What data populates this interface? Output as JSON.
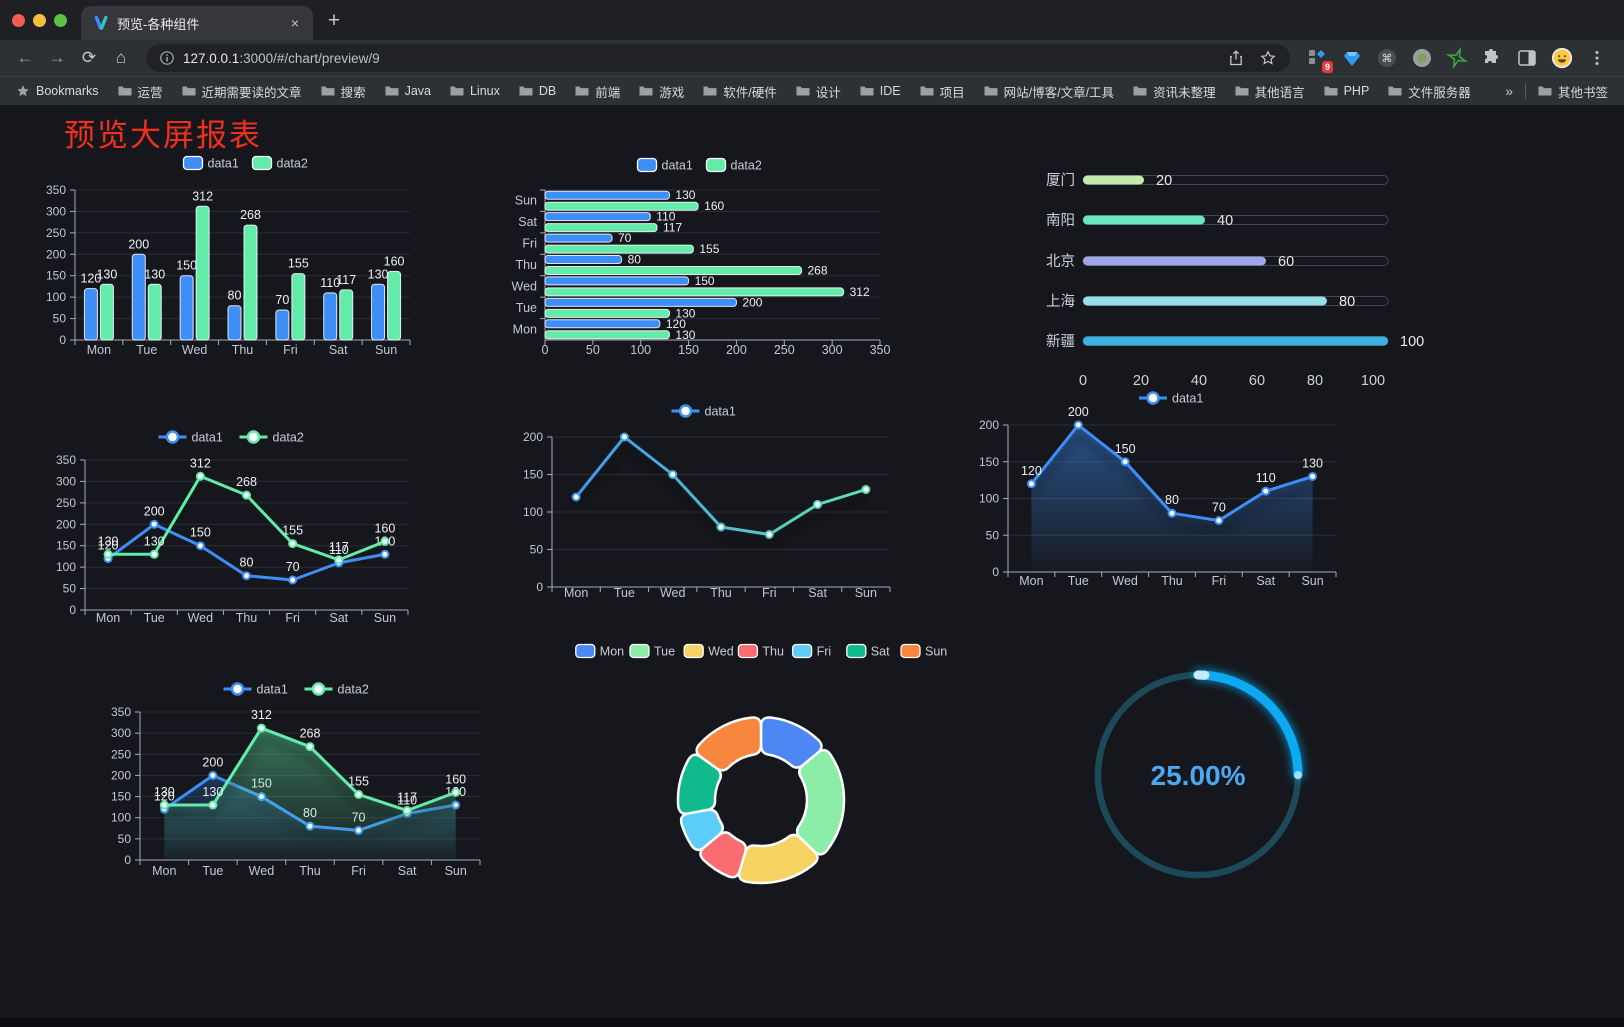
{
  "browser": {
    "tab": {
      "title": "预览-各种组件",
      "close_glyph": "×",
      "new_tab_glyph": "+"
    },
    "url": {
      "host": "127.0.0.1",
      "rest": ":3000/#/chart/preview/9"
    },
    "extension_badge": "9",
    "bookmarks_label": "Bookmarks",
    "bookmarks": [
      "运营",
      "近期需要读的文章",
      "搜索",
      "Java",
      "Linux",
      "DB",
      "前端",
      "游戏",
      "软件/硬件",
      "设计",
      "IDE",
      "项目",
      "网站/博客/文章/工具",
      "资讯未整理",
      "其他语言",
      "PHP",
      "文件服务器"
    ],
    "bookmarks_overflow": "»",
    "other_bookmarks": "其他书签"
  },
  "page": {
    "title": "预览大屏报表",
    "title_color": "#F0301C"
  },
  "chart_data": [
    {
      "id": "grouped-bar-vertical",
      "type": "bar",
      "categories": [
        "Mon",
        "Tue",
        "Wed",
        "Thu",
        "Fri",
        "Sat",
        "Sun"
      ],
      "series": [
        {
          "name": "data1",
          "color": "#3E8EF7",
          "values": [
            120,
            200,
            150,
            80,
            70,
            110,
            130
          ]
        },
        {
          "name": "data2",
          "color": "#63EBA9",
          "values": [
            130,
            130,
            312,
            268,
            155,
            117,
            160
          ]
        }
      ],
      "ylim": [
        0,
        350
      ],
      "ytick_step": 50,
      "legend_position": "top",
      "grid": true,
      "value_labels": true
    },
    {
      "id": "grouped-bar-horizontal",
      "type": "bar",
      "orientation": "horizontal",
      "categories": [
        "Mon",
        "Tue",
        "Wed",
        "Thu",
        "Fri",
        "Sat",
        "Sun"
      ],
      "categories_display_top_to_bottom": [
        "Sun",
        "Sat",
        "Fri",
        "Thu",
        "Wed",
        "Tue",
        "Mon"
      ],
      "series": [
        {
          "name": "data1",
          "color": "#3E8EF7",
          "values": [
            120,
            200,
            150,
            80,
            70,
            110,
            130
          ]
        },
        {
          "name": "data2",
          "color": "#63EBA9",
          "values": [
            130,
            130,
            312,
            268,
            155,
            117,
            160
          ]
        }
      ],
      "xlim": [
        0,
        350
      ],
      "xtick_step": 50,
      "legend_position": "top",
      "value_labels": true
    },
    {
      "id": "city-progress",
      "type": "bar",
      "variant": "progress",
      "categories": [
        "厦门",
        "南阳",
        "北京",
        "上海",
        "新疆"
      ],
      "values": [
        20,
        40,
        60,
        80,
        100
      ],
      "colors": [
        "#C4EBAD",
        "#6BE6C1",
        "#A0A7E6",
        "#96DEE8",
        "#3FB1E3"
      ],
      "xticks": [
        0,
        20,
        40,
        60,
        80,
        100
      ],
      "xlim": [
        0,
        100
      ],
      "value_labels": true
    },
    {
      "id": "line-two-series",
      "type": "line",
      "categories": [
        "Mon",
        "Tue",
        "Wed",
        "Thu",
        "Fri",
        "Sat",
        "Sun"
      ],
      "series": [
        {
          "name": "data1",
          "color": "#3E8EF7",
          "values": [
            120,
            200,
            150,
            80,
            70,
            110,
            130
          ]
        },
        {
          "name": "data2",
          "color": "#63EBA9",
          "values": [
            130,
            130,
            312,
            268,
            155,
            117,
            160
          ]
        }
      ],
      "ylim": [
        0,
        350
      ],
      "ytick_step": 50,
      "legend_position": "top",
      "value_labels": true,
      "shadow": false
    },
    {
      "id": "line-gradient-single",
      "type": "line",
      "categories": [
        "Mon",
        "Tue",
        "Wed",
        "Thu",
        "Fri",
        "Sat",
        "Sun"
      ],
      "series": [
        {
          "name": "data1",
          "gradient": [
            "#3E8EF7",
            "#63EBA9"
          ],
          "values": [
            120,
            200,
            150,
            80,
            70,
            110,
            130
          ]
        }
      ],
      "ylim": [
        0,
        200
      ],
      "ytick_step": 50,
      "legend_position": "top",
      "value_labels": false,
      "shadow": true
    },
    {
      "id": "area-single",
      "type": "line",
      "categories": [
        "Mon",
        "Tue",
        "Wed",
        "Thu",
        "Fri",
        "Sat",
        "Sun"
      ],
      "series": [
        {
          "name": "data1",
          "color": "#3E8EF7",
          "values": [
            120,
            200,
            150,
            80,
            70,
            110,
            130
          ],
          "area": true
        }
      ],
      "ylim": [
        0,
        200
      ],
      "ytick_step": 50,
      "legend_position": "top",
      "value_labels": true,
      "shadow": true
    },
    {
      "id": "area-two-series",
      "type": "line",
      "categories": [
        "Mon",
        "Tue",
        "Wed",
        "Thu",
        "Fri",
        "Sat",
        "Sun"
      ],
      "series": [
        {
          "name": "data1",
          "color": "#3E8EF7",
          "values": [
            120,
            200,
            150,
            80,
            70,
            110,
            130
          ],
          "area": true
        },
        {
          "name": "data2",
          "color": "#63EBA9",
          "values": [
            130,
            130,
            312,
            268,
            155,
            117,
            160
          ],
          "area": true
        }
      ],
      "ylim": [
        0,
        350
      ],
      "ytick_step": 50,
      "legend_position": "top",
      "value_labels": true,
      "shadow": true
    },
    {
      "id": "weekday-donut",
      "type": "pie",
      "legend": [
        "Mon",
        "Tue",
        "Wed",
        "Thu",
        "Fri",
        "Sat",
        "Sun"
      ],
      "values": [
        120,
        200,
        150,
        80,
        70,
        110,
        130
      ],
      "colors": [
        "#4C87F3",
        "#8BEDA8",
        "#F5D262",
        "#F96C70",
        "#5BCDF6",
        "#10BA8C",
        "#F7873E"
      ],
      "border_color": "#FFFFFF",
      "donut": true,
      "legend_position": "top"
    },
    {
      "id": "percent-gauge",
      "type": "gauge",
      "percent": 25,
      "label": "25.00%",
      "progress_color": "#0FA9F2",
      "track_color": "#1C4A58",
      "label_color": "#4AA9F2"
    }
  ]
}
